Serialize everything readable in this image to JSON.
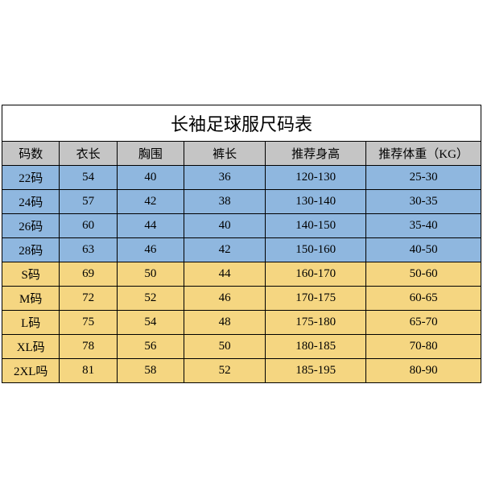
{
  "table": {
    "title": "长袖足球服尺码表",
    "title_fontsize": 22,
    "header_fontsize": 15,
    "cell_fontsize": 15,
    "border_color": "#000000",
    "background_color": "#ffffff",
    "header_bg": "#c5c5c5",
    "row_bg_blue": "#8fb7df",
    "row_bg_yellow": "#f5d681",
    "columns": [
      "码数",
      "衣长",
      "胸围",
      "裤长",
      "推荐身高",
      "推荐体重（KG）"
    ],
    "column_widths_pct": [
      12,
      12,
      14,
      17,
      21,
      24
    ],
    "rows": [
      {
        "cells": [
          "22码",
          "54",
          "40",
          "36",
          "120-130",
          "25-30"
        ],
        "bg": "#8fb7df"
      },
      {
        "cells": [
          "24码",
          "57",
          "42",
          "38",
          "130-140",
          "30-35"
        ],
        "bg": "#8fb7df"
      },
      {
        "cells": [
          "26码",
          "60",
          "44",
          "40",
          "140-150",
          "35-40"
        ],
        "bg": "#8fb7df"
      },
      {
        "cells": [
          "28码",
          "63",
          "46",
          "42",
          "150-160",
          "40-50"
        ],
        "bg": "#8fb7df"
      },
      {
        "cells": [
          "S码",
          "69",
          "50",
          "44",
          "160-170",
          "50-60"
        ],
        "bg": "#f5d681"
      },
      {
        "cells": [
          "M码",
          "72",
          "52",
          "46",
          "170-175",
          "60-65"
        ],
        "bg": "#f5d681"
      },
      {
        "cells": [
          "L码",
          "75",
          "54",
          "48",
          "175-180",
          "65-70"
        ],
        "bg": "#f5d681"
      },
      {
        "cells": [
          "XL码",
          "78",
          "56",
          "50",
          "180-185",
          "70-80"
        ],
        "bg": "#f5d681"
      },
      {
        "cells": [
          "2XL吗",
          "81",
          "58",
          "52",
          "185-195",
          "80-90"
        ],
        "bg": "#f5d681"
      }
    ]
  }
}
